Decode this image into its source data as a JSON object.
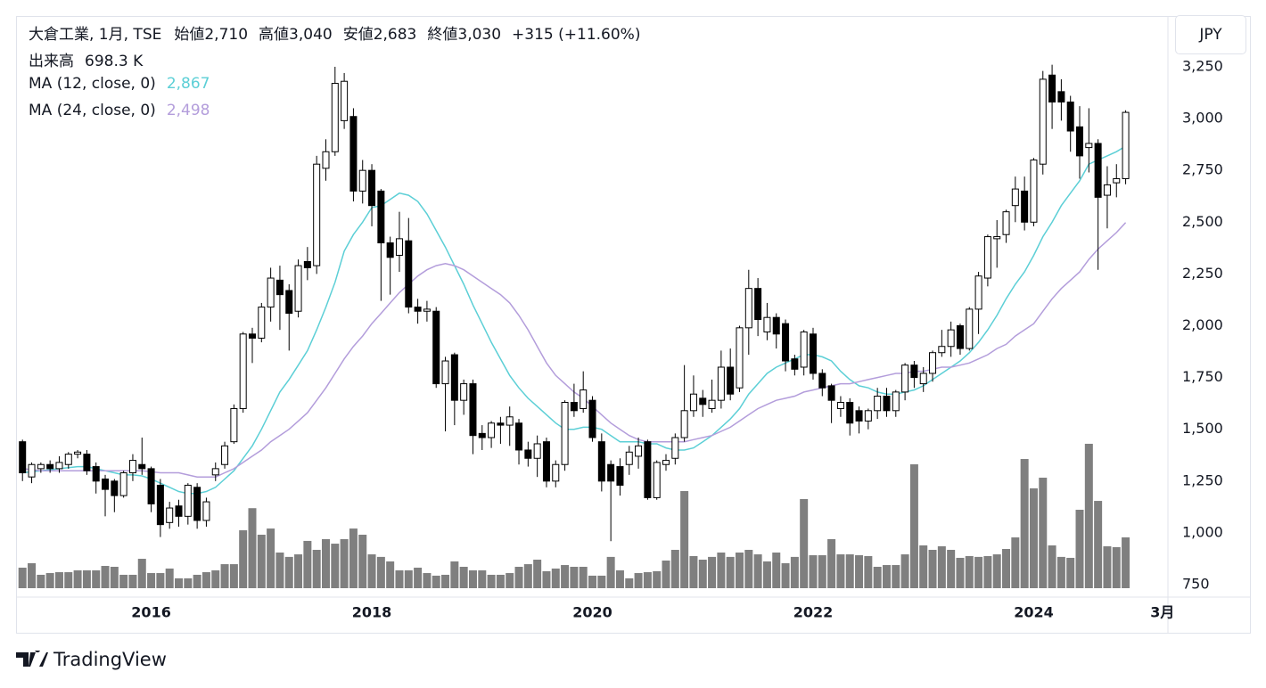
{
  "header": {
    "symbol": "大倉工業, 1月, TSE",
    "open_label": "始値",
    "open": "2,710",
    "high_label": "高値",
    "high": "3,040",
    "low_label": "安値",
    "low": "2,683",
    "close_label": "終値",
    "close": "3,030",
    "change": "+315 (+11.60%)",
    "volume_label": "出来高",
    "volume": "698.3 K",
    "ma1_label": "MA (12, close, 0)",
    "ma1_value": "2,867",
    "ma2_label": "MA (24, close, 0)",
    "ma2_value": "2,498"
  },
  "currency": "JPY",
  "brand": "TradingView",
  "chart_data": {
    "type": "candlestick",
    "up_color": "#ffffff",
    "down_color": "#000000",
    "volume_color": "#7f7f7f",
    "open": [
      1440,
      1270,
      1310,
      1330,
      1310,
      1330,
      1380,
      1380,
      1320,
      1260,
      1250,
      1180,
      1290,
      1330,
      1310,
      1230,
      1050,
      1130,
      1080,
      1220,
      1060,
      1280,
      1330,
      1440,
      1600,
      1960,
      1940,
      2090,
      2220,
      2170,
      2070,
      2310,
      2290,
      2760,
      2840,
      2990,
      3010,
      2650,
      2750,
      2650,
      2400,
      2340,
      2410,
      2090,
      2070,
      2070,
      1720,
      1860,
      1640,
      1720,
      1480,
      1460,
      1530,
      1520,
      1530,
      1400,
      1360,
      1440,
      1250,
      1330,
      1630,
      1600,
      1640,
      1440,
      1330,
      1320,
      1330,
      1370,
      1440,
      1170,
      1330,
      1360,
      1460,
      1590,
      1650,
      1600,
      1640,
      1800,
      1700,
      1990,
      2180,
      1970,
      2040,
      2010,
      1840,
      1800,
      1960,
      1770,
      1710,
      1600,
      1630,
      1590,
      1540,
      1590,
      1660,
      1590,
      1680,
      1810,
      1720,
      1770,
      1870,
      1900,
      2000,
      1890,
      2080,
      2230,
      2420,
      2440,
      2580,
      2650,
      2500,
      2780,
      3210,
      3130,
      3080,
      2960,
      2860,
      2880,
      2630,
      2690,
      2710
    ],
    "high": [
      1450,
      1340,
      1340,
      1350,
      1370,
      1390,
      1400,
      1400,
      1340,
      1280,
      1260,
      1300,
      1380,
      1460,
      1320,
      1260,
      1150,
      1160,
      1240,
      1240,
      1170,
      1340,
      1440,
      1620,
      1970,
      1990,
      2110,
      2280,
      2290,
      2200,
      2320,
      2380,
      2820,
      2900,
      3250,
      3220,
      3050,
      2800,
      2780,
      2660,
      2430,
      2550,
      2520,
      2130,
      2120,
      2090,
      1850,
      1870,
      1740,
      1740,
      1520,
      1540,
      1560,
      1610,
      1550,
      1440,
      1470,
      1460,
      1350,
      1640,
      1720,
      1780,
      1660,
      1480,
      1350,
      1360,
      1420,
      1460,
      1450,
      1350,
      1380,
      1480,
      1810,
      1760,
      1690,
      1740,
      1880,
      1890,
      2000,
      2270,
      2230,
      2110,
      2060,
      2030,
      1860,
      1980,
      1990,
      1790,
      1720,
      1660,
      1650,
      1610,
      1600,
      1700,
      1700,
      1690,
      1820,
      1830,
      1800,
      1880,
      1980,
      2020,
      2010,
      2090,
      2260,
      2440,
      2510,
      2560,
      2720,
      2720,
      2810,
      3230,
      3260,
      3190,
      3110,
      3060,
      3050,
      2900,
      2770,
      2780,
      3040
    ],
    "low": [
      1250,
      1240,
      1290,
      1290,
      1290,
      1310,
      1360,
      1280,
      1190,
      1080,
      1100,
      1170,
      1250,
      1280,
      1100,
      980,
      1020,
      1030,
      1040,
      1020,
      1030,
      1250,
      1310,
      1430,
      1580,
      1820,
      1920,
      2020,
      1980,
      1880,
      2040,
      2220,
      2250,
      2700,
      2820,
      2950,
      2600,
      2590,
      2480,
      2120,
      2150,
      2260,
      2060,
      2010,
      2020,
      1700,
      1490,
      1520,
      1570,
      1380,
      1400,
      1410,
      1430,
      1420,
      1330,
      1320,
      1270,
      1220,
      1220,
      1300,
      1560,
      1580,
      1440,
      1200,
      960,
      1180,
      1280,
      1310,
      1160,
      1160,
      1300,
      1330,
      1440,
      1560,
      1560,
      1580,
      1600,
      1640,
      1680,
      1860,
      1950,
      1930,
      1890,
      1780,
      1760,
      1760,
      1740,
      1660,
      1530,
      1560,
      1470,
      1480,
      1500,
      1550,
      1560,
      1560,
      1640,
      1700,
      1680,
      1730,
      1850,
      1850,
      1860,
      1880,
      1960,
      2190,
      2280,
      2400,
      2500,
      2460,
      2480,
      2730,
      2950,
      2990,
      2840,
      2710,
      2740,
      2270,
      2470,
      2620,
      2683
    ],
    "close": [
      1290,
      1330,
      1330,
      1310,
      1340,
      1380,
      1390,
      1300,
      1250,
      1210,
      1180,
      1290,
      1350,
      1310,
      1140,
      1040,
      1120,
      1080,
      1230,
      1060,
      1150,
      1310,
      1420,
      1600,
      1960,
      1940,
      2090,
      2230,
      2150,
      2060,
      2290,
      2280,
      2780,
      2840,
      3170,
      3180,
      2650,
      2750,
      2580,
      2400,
      2330,
      2420,
      2090,
      2070,
      2080,
      1720,
      1830,
      1640,
      1720,
      1470,
      1460,
      1530,
      1520,
      1560,
      1400,
      1360,
      1430,
      1250,
      1330,
      1630,
      1590,
      1690,
      1460,
      1250,
      1250,
      1230,
      1390,
      1420,
      1170,
      1340,
      1350,
      1460,
      1590,
      1670,
      1620,
      1640,
      1800,
      1670,
      1990,
      2180,
      2030,
      2040,
      1960,
      1830,
      1790,
      1970,
      1770,
      1700,
      1640,
      1630,
      1530,
      1540,
      1590,
      1660,
      1590,
      1680,
      1810,
      1750,
      1770,
      1870,
      1900,
      1980,
      1890,
      2080,
      2240,
      2430,
      2430,
      2550,
      2660,
      2500,
      2800,
      3190,
      3080,
      3080,
      2940,
      2820,
      2880,
      2620,
      2680,
      2710,
      3030
    ],
    "volume": [
      282,
      343,
      184,
      208,
      220,
      220,
      245,
      245,
      245,
      306,
      294,
      184,
      184,
      404,
      208,
      208,
      270,
      135,
      135,
      184,
      220,
      245,
      330,
      330,
      796,
      1100,
      735,
      820,
      490,
      430,
      465,
      650,
      527,
      674,
      612,
      674,
      820,
      735,
      465,
      430,
      368,
      245,
      245,
      282,
      208,
      172,
      184,
      368,
      294,
      245,
      245,
      184,
      184,
      208,
      294,
      330,
      392,
      233,
      270,
      318,
      294,
      294,
      172,
      172,
      430,
      245,
      135,
      208,
      220,
      233,
      380,
      527,
      1335,
      441,
      392,
      430,
      490,
      430,
      490,
      527,
      465,
      368,
      490,
      343,
      430,
      1225,
      453,
      453,
      674,
      465,
      465,
      453,
      441,
      294,
      318,
      318,
      465,
      1703,
      588,
      527,
      576,
      527,
      417,
      441,
      430,
      441,
      465,
      539,
      698,
      1776,
      1372,
      1519,
      588,
      430,
      417,
      1078,
      1985,
      1200,
      576,
      564,
      698.3
    ],
    "ma": [
      {
        "name": "MA (12, close, 0)",
        "color": "#5ccfd6",
        "values": [
          1290,
          1295,
          1300,
          1305,
          1310,
          1315,
          1320,
          1320,
          1310,
          1300,
          1290,
          1280,
          1280,
          1275,
          1260,
          1240,
          1220,
          1200,
          1190,
          1190,
          1200,
          1220,
          1260,
          1300,
          1360,
          1420,
          1500,
          1590,
          1680,
          1740,
          1810,
          1880,
          1980,
          2090,
          2210,
          2360,
          2440,
          2500,
          2570,
          2580,
          2610,
          2640,
          2630,
          2600,
          2540,
          2460,
          2380,
          2290,
          2200,
          2100,
          2010,
          1920,
          1840,
          1760,
          1700,
          1650,
          1610,
          1570,
          1530,
          1500,
          1500,
          1510,
          1510,
          1500,
          1470,
          1440,
          1440,
          1440,
          1430,
          1430,
          1410,
          1400,
          1400,
          1410,
          1440,
          1470,
          1510,
          1550,
          1600,
          1670,
          1720,
          1770,
          1800,
          1820,
          1840,
          1860,
          1860,
          1850,
          1830,
          1780,
          1740,
          1710,
          1700,
          1680,
          1670,
          1670,
          1680,
          1690,
          1710,
          1740,
          1770,
          1800,
          1830,
          1870,
          1920,
          1980,
          2050,
          2130,
          2200,
          2260,
          2340,
          2430,
          2500,
          2580,
          2640,
          2700,
          2780,
          2800,
          2820,
          2840,
          2867
        ]
      },
      {
        "name": "MA (24, close, 0)",
        "color": "#b39ddb",
        "values": [
          1310,
          1305,
          1300,
          1300,
          1300,
          1300,
          1300,
          1300,
          1300,
          1300,
          1300,
          1300,
          1300,
          1300,
          1295,
          1290,
          1290,
          1290,
          1280,
          1270,
          1270,
          1270,
          1290,
          1310,
          1340,
          1370,
          1400,
          1440,
          1470,
          1500,
          1540,
          1580,
          1640,
          1700,
          1770,
          1840,
          1900,
          1950,
          2010,
          2060,
          2110,
          2160,
          2200,
          2240,
          2270,
          2290,
          2300,
          2290,
          2270,
          2240,
          2210,
          2180,
          2150,
          2110,
          2050,
          1980,
          1900,
          1820,
          1760,
          1720,
          1680,
          1650,
          1610,
          1570,
          1530,
          1500,
          1470,
          1450,
          1440,
          1440,
          1440,
          1440,
          1440,
          1450,
          1460,
          1470,
          1490,
          1510,
          1540,
          1570,
          1600,
          1620,
          1640,
          1650,
          1660,
          1680,
          1690,
          1700,
          1710,
          1720,
          1720,
          1730,
          1740,
          1750,
          1760,
          1770,
          1770,
          1780,
          1780,
          1790,
          1800,
          1800,
          1810,
          1820,
          1840,
          1860,
          1890,
          1910,
          1950,
          1980,
          2010,
          2070,
          2130,
          2180,
          2220,
          2260,
          2320,
          2370,
          2410,
          2450,
          2498
        ]
      }
    ],
    "xlim": [
      -0.7,
      124.6
    ],
    "xticks": [
      {
        "value": 14,
        "label": "2016"
      },
      {
        "value": 38,
        "label": "2018"
      },
      {
        "value": 62,
        "label": "2020"
      },
      {
        "value": 86,
        "label": "2022"
      },
      {
        "value": 110,
        "label": "2024"
      },
      {
        "value": 124,
        "label": "3月"
      }
    ],
    "ylim": [
      733,
      3495
    ],
    "yticks": [
      {
        "value": 750,
        "label": "750"
      },
      {
        "value": 1000,
        "label": "1,000"
      },
      {
        "value": 1250,
        "label": "1,250"
      },
      {
        "value": 1500,
        "label": "1,500"
      },
      {
        "value": 1750,
        "label": "1,750"
      },
      {
        "value": 2000,
        "label": "2,000"
      },
      {
        "value": 2250,
        "label": "2,250"
      },
      {
        "value": 2500,
        "label": "2,500"
      },
      {
        "value": 2750,
        "label": "2,750"
      },
      {
        "value": 3000,
        "label": "3,000"
      },
      {
        "value": 3250,
        "label": "3,250"
      }
    ],
    "grid": true
  }
}
